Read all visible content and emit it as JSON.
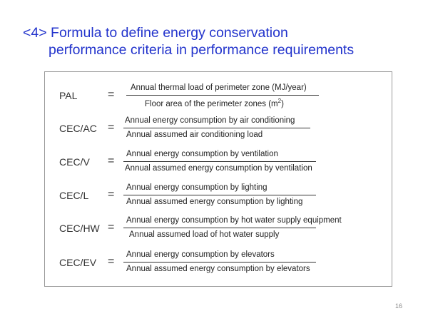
{
  "slide": {
    "title_line1": "<4> Formula to define energy conservation",
    "title_line2": "performance criteria in performance requirements",
    "page_number": "16"
  },
  "equals_sign": "=",
  "formulas": [
    {
      "lhs": "PAL",
      "numerator": "Annual thermal load of perimeter zone (MJ/year)",
      "denominator": "Floor area of the perimeter zones (m",
      "denominator_sup": "2",
      "denominator_end": ")"
    },
    {
      "lhs": "CEC/AC",
      "numerator": "Annual energy consumption by air conditioning",
      "denominator": "Annual assumed air conditioning load"
    },
    {
      "lhs": "CEC/V",
      "numerator": "Annual energy consumption by ventilation",
      "denominator": "Annual assumed energy consumption by ventilation"
    },
    {
      "lhs": "CEC/L",
      "numerator": "Annual energy consumption by lighting",
      "denominator": "Annual assumed energy consumption by lighting"
    },
    {
      "lhs": "CEC/HW",
      "numerator": "Annual energy consumption by hot water supply equipment",
      "denominator": "Annual assumed load of hot water supply"
    },
    {
      "lhs": "CEC/EV",
      "numerator": "Annual energy consumption by elevators",
      "denominator": "Annual assumed energy consumption by elevators"
    }
  ]
}
